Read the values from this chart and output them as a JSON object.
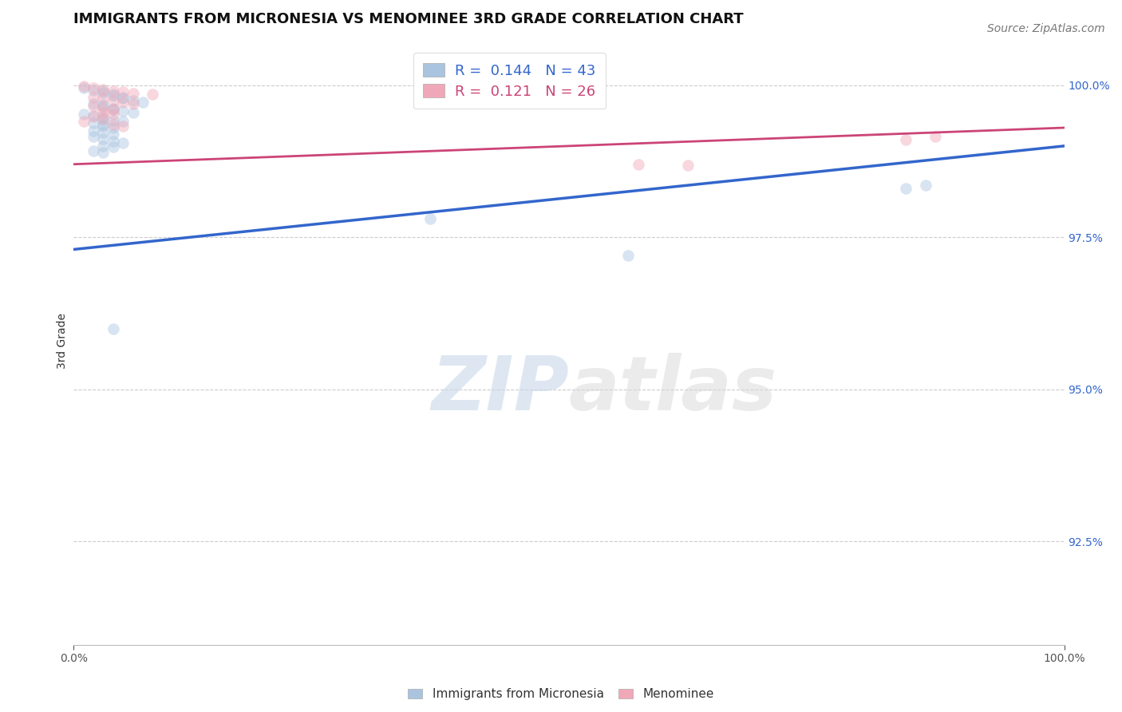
{
  "title": "IMMIGRANTS FROM MICRONESIA VS MENOMINEE 3RD GRADE CORRELATION CHART",
  "source_text": "Source: ZipAtlas.com",
  "ylabel": "3rd Grade",
  "xlim": [
    0.0,
    1.0
  ],
  "ylim": [
    0.908,
    1.008
  ],
  "yticks": [
    0.925,
    0.95,
    0.975,
    1.0
  ],
  "ytick_labels": [
    "92.5%",
    "95.0%",
    "97.5%",
    "100.0%"
  ],
  "xticks": [
    0.0,
    1.0
  ],
  "xtick_labels": [
    "0.0%",
    "100.0%"
  ],
  "blue_R": 0.144,
  "blue_N": 43,
  "pink_R": 0.121,
  "pink_N": 26,
  "blue_color": "#aac4e0",
  "pink_color": "#f0a8b8",
  "blue_line_color": "#3366cc",
  "pink_line_color": "#cc4477",
  "watermark_zip": "ZIP",
  "watermark_atlas": "atlas",
  "legend_label_blue": "Immigrants from Micronesia",
  "legend_label_pink": "Menominee",
  "blue_scatter_x": [
    0.01,
    0.02,
    0.03,
    0.03,
    0.04,
    0.04,
    0.05,
    0.05,
    0.06,
    0.07,
    0.02,
    0.03,
    0.03,
    0.04,
    0.04,
    0.05,
    0.06,
    0.01,
    0.02,
    0.03,
    0.03,
    0.04,
    0.05,
    0.02,
    0.03,
    0.03,
    0.04,
    0.02,
    0.03,
    0.04,
    0.02,
    0.03,
    0.04,
    0.05,
    0.03,
    0.04,
    0.02,
    0.03,
    0.36,
    0.56,
    0.84,
    0.86,
    0.04
  ],
  "blue_scatter_y": [
    0.9995,
    0.9992,
    0.999,
    0.9988,
    0.9985,
    0.9982,
    0.998,
    0.9978,
    0.9975,
    0.9972,
    0.997,
    0.9968,
    0.9965,
    0.9962,
    0.996,
    0.9958,
    0.9955,
    0.9952,
    0.995,
    0.9948,
    0.9945,
    0.9942,
    0.994,
    0.9938,
    0.9935,
    0.9932,
    0.993,
    0.9925,
    0.9922,
    0.992,
    0.9915,
    0.9912,
    0.9908,
    0.9905,
    0.99,
    0.9898,
    0.9892,
    0.989,
    0.978,
    0.972,
    0.983,
    0.9835,
    0.96
  ],
  "pink_scatter_x": [
    0.01,
    0.02,
    0.03,
    0.04,
    0.05,
    0.06,
    0.08,
    0.02,
    0.03,
    0.04,
    0.05,
    0.06,
    0.02,
    0.03,
    0.04,
    0.03,
    0.04,
    0.02,
    0.03,
    0.01,
    0.04,
    0.05,
    0.57,
    0.62,
    0.84,
    0.87
  ],
  "pink_scatter_y": [
    0.9998,
    0.9995,
    0.9993,
    0.9991,
    0.9989,
    0.9987,
    0.9985,
    0.998,
    0.9978,
    0.9975,
    0.9972,
    0.997,
    0.9965,
    0.9962,
    0.996,
    0.9955,
    0.9952,
    0.9948,
    0.9945,
    0.994,
    0.9935,
    0.9932,
    0.987,
    0.9868,
    0.991,
    0.9915
  ],
  "blue_line_x": [
    0.0,
    1.0
  ],
  "blue_line_y": [
    0.973,
    0.99
  ],
  "pink_line_x": [
    0.0,
    1.0
  ],
  "pink_line_y": [
    0.987,
    0.993
  ],
  "background_color": "#ffffff",
  "grid_color": "#cccccc",
  "dot_size": 110,
  "dot_alpha": 0.45,
  "title_fontsize": 13,
  "axis_label_fontsize": 10,
  "tick_fontsize": 10,
  "legend_fontsize": 13,
  "source_fontsize": 10
}
